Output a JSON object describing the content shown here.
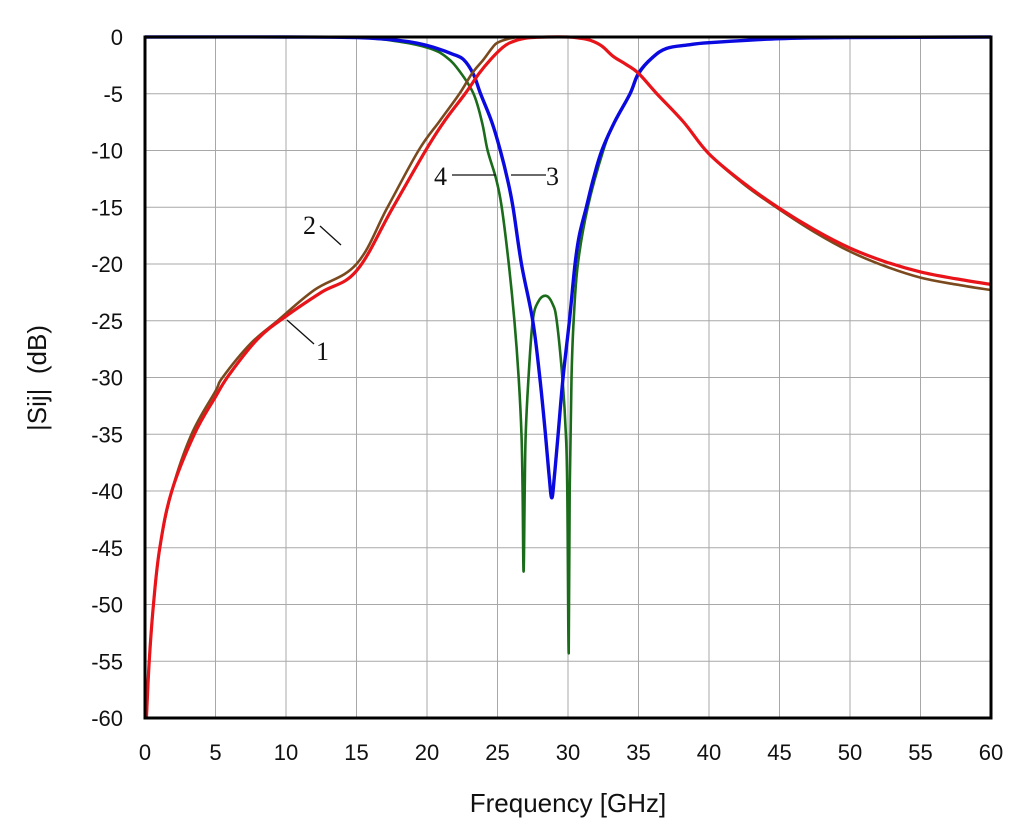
{
  "chart_data": {
    "type": "line",
    "title": "",
    "xlabel": "Frequency [GHz]",
    "ylabel": "|Sij|  (dB)",
    "xlim": [
      0,
      60
    ],
    "ylim": [
      -60,
      0
    ],
    "grid": true,
    "x_ticks": [
      "0",
      "5",
      "10",
      "15",
      "20",
      "25",
      "30",
      "35",
      "40",
      "45",
      "50",
      "55",
      "60"
    ],
    "y_ticks": [
      "0",
      "-5",
      "-10",
      "-15",
      "-20",
      "-25",
      "-30",
      "-35",
      "-40",
      "-45",
      "-50",
      "-55",
      "-60"
    ],
    "series": [
      {
        "name": "1",
        "color": "#e8141a",
        "points": [
          [
            0.1,
            -60
          ],
          [
            0.3,
            -55
          ],
          [
            0.6,
            -50
          ],
          [
            1.05,
            -45
          ],
          [
            1.9,
            -40
          ],
          [
            3.5,
            -35
          ],
          [
            5,
            -31.7
          ],
          [
            6,
            -29.7
          ],
          [
            8,
            -26.6
          ],
          [
            10,
            -24.6
          ],
          [
            12.5,
            -22.5
          ],
          [
            15,
            -20.6
          ],
          [
            17.5,
            -15.2
          ],
          [
            20,
            -9.8
          ],
          [
            21.3,
            -7.3
          ],
          [
            22.7,
            -5
          ],
          [
            23.7,
            -3.2
          ],
          [
            24.5,
            -2
          ],
          [
            25.3,
            -1
          ],
          [
            25.9,
            -0.5
          ],
          [
            27,
            -0.1
          ],
          [
            28.5,
            0
          ],
          [
            30,
            0
          ],
          [
            30.8,
            -0.1
          ],
          [
            31.6,
            -0.3
          ],
          [
            32.4,
            -0.8
          ],
          [
            33.2,
            -1.7
          ],
          [
            34.1,
            -2.4
          ],
          [
            35,
            -3.2
          ],
          [
            36.3,
            -5
          ],
          [
            38.2,
            -7.5
          ],
          [
            40,
            -10.3
          ],
          [
            42.5,
            -12.9
          ],
          [
            45,
            -15.1
          ],
          [
            47.5,
            -17.0
          ],
          [
            50,
            -18.6
          ],
          [
            52.5,
            -19.8
          ],
          [
            55,
            -20.7
          ],
          [
            57.5,
            -21.3
          ],
          [
            60,
            -21.8
          ]
        ]
      },
      {
        "name": "2",
        "color": "#7a4a1e",
        "points": [
          [
            0.1,
            -60
          ],
          [
            0.3,
            -55
          ],
          [
            0.6,
            -50
          ],
          [
            1.05,
            -45
          ],
          [
            1.9,
            -40
          ],
          [
            3.3,
            -35
          ],
          [
            5,
            -31.2
          ],
          [
            5.5,
            -30
          ],
          [
            7.5,
            -27
          ],
          [
            9.4,
            -25
          ],
          [
            12,
            -22.3
          ],
          [
            15,
            -20
          ],
          [
            17.2,
            -15
          ],
          [
            19.4,
            -10
          ],
          [
            20.9,
            -7.4
          ],
          [
            22.3,
            -5
          ],
          [
            23.2,
            -3.2
          ],
          [
            24,
            -2
          ],
          [
            24.6,
            -1
          ],
          [
            25,
            -0.5
          ],
          [
            26,
            -0.1
          ],
          [
            27,
            0
          ],
          [
            30,
            0
          ],
          [
            30.8,
            -0.1
          ],
          [
            31.6,
            -0.3
          ],
          [
            32.4,
            -0.8
          ],
          [
            33.2,
            -1.7
          ],
          [
            34.1,
            -2.4
          ],
          [
            35,
            -3.2
          ],
          [
            36.3,
            -5
          ],
          [
            38.2,
            -7.5
          ],
          [
            40,
            -10.3
          ],
          [
            42.5,
            -13.0
          ],
          [
            45,
            -15.2
          ],
          [
            47.5,
            -17.2
          ],
          [
            50,
            -18.9
          ],
          [
            52.5,
            -20.2
          ],
          [
            55,
            -21.2
          ],
          [
            57.5,
            -21.8
          ],
          [
            60,
            -22.3
          ]
        ]
      },
      {
        "name": "3",
        "color": "#0a0ae0",
        "points": [
          [
            0,
            0
          ],
          [
            10,
            0
          ],
          [
            15,
            -0.05
          ],
          [
            18,
            -0.3
          ],
          [
            19.5,
            -0.6
          ],
          [
            20.7,
            -1
          ],
          [
            21.8,
            -1.5
          ],
          [
            22.6,
            -2
          ],
          [
            23.3,
            -3.3
          ],
          [
            23.8,
            -5
          ],
          [
            24.6,
            -7.5
          ],
          [
            25.2,
            -10
          ],
          [
            25.7,
            -12.5
          ],
          [
            26.1,
            -15
          ],
          [
            26.7,
            -20
          ],
          [
            27.5,
            -25
          ],
          [
            28.0,
            -30
          ],
          [
            28.4,
            -35
          ],
          [
            28.65,
            -38.5
          ],
          [
            28.85,
            -40.6
          ],
          [
            29.05,
            -38.5
          ],
          [
            29.3,
            -35
          ],
          [
            29.65,
            -30
          ],
          [
            30.1,
            -25
          ],
          [
            30.5,
            -20
          ],
          [
            30.8,
            -17.5
          ],
          [
            31.3,
            -15
          ],
          [
            31.8,
            -12.5
          ],
          [
            32.4,
            -10
          ],
          [
            33.3,
            -7.5
          ],
          [
            34.4,
            -5
          ],
          [
            35,
            -3.2
          ],
          [
            36,
            -1.8
          ],
          [
            37,
            -1
          ],
          [
            38.5,
            -0.7
          ],
          [
            40,
            -0.5
          ],
          [
            45,
            -0.15
          ],
          [
            50,
            -0.05
          ],
          [
            60,
            0
          ]
        ]
      },
      {
        "name": "4",
        "color": "#1a6b1a",
        "points": [
          [
            0,
            0
          ],
          [
            10,
            0
          ],
          [
            15,
            -0.05
          ],
          [
            18,
            -0.4
          ],
          [
            20.2,
            -1
          ],
          [
            21.4,
            -1.8
          ],
          [
            22.3,
            -3
          ],
          [
            23.3,
            -5
          ],
          [
            23.9,
            -7.5
          ],
          [
            24.3,
            -10
          ],
          [
            24.9,
            -12.5
          ],
          [
            25.3,
            -15
          ],
          [
            25.8,
            -20
          ],
          [
            26.2,
            -25
          ],
          [
            26.5,
            -30
          ],
          [
            26.7,
            -35
          ],
          [
            26.78,
            -40
          ],
          [
            26.85,
            -47.1
          ],
          [
            26.93,
            -40
          ],
          [
            27.0,
            -35
          ],
          [
            27.2,
            -30
          ],
          [
            27.5,
            -25
          ],
          [
            27.9,
            -23.3
          ],
          [
            28.45,
            -22.8
          ],
          [
            28.9,
            -23.5
          ],
          [
            29.2,
            -25
          ],
          [
            29.6,
            -30
          ],
          [
            29.85,
            -35
          ],
          [
            29.95,
            -40
          ],
          [
            30.05,
            -54.3
          ],
          [
            30.12,
            -40
          ],
          [
            30.25,
            -30
          ],
          [
            30.4,
            -25
          ],
          [
            30.7,
            -20
          ],
          [
            31.4,
            -15
          ],
          [
            32.5,
            -10
          ],
          [
            33.3,
            -7.5
          ],
          [
            34.4,
            -5
          ],
          [
            35,
            -3.3
          ],
          [
            36,
            -1.8
          ],
          [
            37,
            -1
          ],
          [
            38.5,
            -0.7
          ],
          [
            40,
            -0.5
          ],
          [
            45,
            -0.15
          ],
          [
            50,
            -0.05
          ],
          [
            60,
            0
          ]
        ]
      }
    ],
    "annotations": [
      {
        "text": "1",
        "points_to_series": "1"
      },
      {
        "text": "2",
        "points_to_series": "2"
      },
      {
        "text": "3",
        "points_to_series": "3"
      },
      {
        "text": "4",
        "points_to_series": "4"
      }
    ]
  }
}
